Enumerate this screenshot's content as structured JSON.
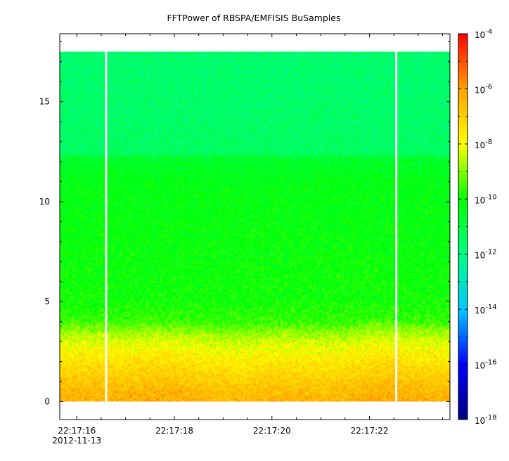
{
  "chart_data": {
    "type": "heatmap",
    "title": "FFTPower of RBSPA/EMFISIS  BuSamples",
    "xlabel": "",
    "ylabel": "",
    "x": {
      "unit": "seconds after 22:17:00",
      "range": [
        15.65,
        23.65
      ],
      "ticks": [
        {
          "value": 16,
          "label": "22:17:16",
          "sublabel": "2012-11-13"
        },
        {
          "value": 18,
          "label": "22:17:18",
          "sublabel": ""
        },
        {
          "value": 20,
          "label": "22:17:20",
          "sublabel": ""
        },
        {
          "value": 22,
          "label": "22:17:22",
          "sublabel": ""
        }
      ],
      "minor_step": 0.5
    },
    "y": {
      "range": [
        -0.9,
        18.4
      ],
      "ticks": [
        0,
        5,
        10,
        15
      ],
      "minor_step": 1,
      "data_top": 17.5,
      "data_bottom": 0
    },
    "z": {
      "scale": "log",
      "range": [
        1e-18,
        0.0001
      ],
      "colorbar_ticks": [
        {
          "exp": -4,
          "base": "10",
          "sup": "-4"
        },
        {
          "exp": -6,
          "base": "10",
          "sup": "-6"
        },
        {
          "exp": -8,
          "base": "10",
          "sup": "-8"
        },
        {
          "exp": -10,
          "base": "10",
          "sup": "-10"
        },
        {
          "exp": -12,
          "base": "10",
          "sup": "-12"
        },
        {
          "exp": -14,
          "base": "10",
          "sup": "-14"
        },
        {
          "exp": -16,
          "base": "10",
          "sup": "-16"
        },
        {
          "exp": -18,
          "base": "10",
          "sup": "-18"
        }
      ],
      "colormap": [
        "#000080",
        "#0000ff",
        "#00c8ff",
        "#00ff80",
        "#00ff00",
        "#ffff00",
        "#ffa000",
        "#ff0000"
      ]
    },
    "data_gaps_x": [
      16.6,
      22.55
    ],
    "spectrum_profile": [
      {
        "freq": 0.0,
        "log_power": -6.4
      },
      {
        "freq": 0.5,
        "log_power": -6.6
      },
      {
        "freq": 1.0,
        "log_power": -6.9
      },
      {
        "freq": 1.5,
        "log_power": -7.2
      },
      {
        "freq": 2.0,
        "log_power": -7.5
      },
      {
        "freq": 2.5,
        "log_power": -7.9
      },
      {
        "freq": 3.0,
        "log_power": -8.3
      },
      {
        "freq": 3.5,
        "log_power": -8.9
      },
      {
        "freq": 4.0,
        "log_power": -9.6
      },
      {
        "freq": 5.0,
        "log_power": -10.0
      },
      {
        "freq": 7.0,
        "log_power": -10.1
      },
      {
        "freq": 9.0,
        "log_power": -10.2
      },
      {
        "freq": 11.0,
        "log_power": -10.3
      },
      {
        "freq": 12.2,
        "log_power": -10.7
      },
      {
        "freq": 12.4,
        "log_power": -11.5
      },
      {
        "freq": 14.0,
        "log_power": -11.6
      },
      {
        "freq": 17.5,
        "log_power": -11.7
      }
    ],
    "grid": false
  }
}
